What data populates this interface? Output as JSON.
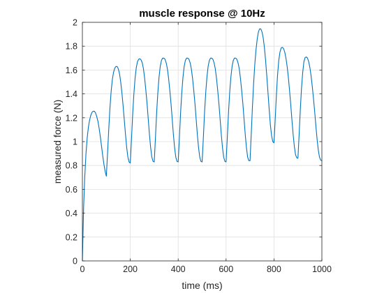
{
  "chart_data": {
    "type": "line",
    "title": "muscle response @ 10Hz",
    "xlabel": "time (ms)",
    "ylabel": "measured force (N)",
    "xlim": [
      0,
      1000
    ],
    "ylim": [
      0,
      2
    ],
    "xticks": [
      0,
      200,
      400,
      600,
      800,
      1000
    ],
    "yticks": [
      0,
      0.2,
      0.4,
      0.6,
      0.8,
      1,
      1.2,
      1.4,
      1.6,
      1.8,
      2
    ],
    "xtick_labels": [
      "0",
      "200",
      "400",
      "600",
      "800",
      "1000"
    ],
    "ytick_labels": [
      "0",
      "0.2",
      "0.4",
      "0.6",
      "0.8",
      "1",
      "1.2",
      "1.4",
      "1.6",
      "1.8",
      "2"
    ],
    "grid": true,
    "series": [
      {
        "color": "#0072BD",
        "x": [
          0,
          5,
          10,
          15,
          20,
          25,
          30,
          35,
          40,
          45,
          50,
          55,
          60,
          65,
          70,
          75,
          80,
          85,
          90,
          95,
          100,
          105,
          110,
          115,
          120,
          125,
          130,
          135,
          140,
          145,
          150,
          155,
          160,
          165,
          170,
          175,
          180,
          185,
          190,
          195,
          200,
          205,
          210,
          215,
          220,
          225,
          230,
          235,
          240,
          245,
          250,
          255,
          260,
          265,
          270,
          275,
          280,
          285,
          290,
          295,
          300,
          305,
          310,
          315,
          320,
          325,
          330,
          335,
          340,
          345,
          350,
          355,
          360,
          365,
          370,
          375,
          380,
          385,
          390,
          395,
          400,
          405,
          410,
          415,
          420,
          425,
          430,
          435,
          440,
          445,
          450,
          455,
          460,
          465,
          470,
          475,
          480,
          485,
          490,
          495,
          500,
          505,
          510,
          515,
          520,
          525,
          530,
          535,
          540,
          545,
          550,
          555,
          560,
          565,
          570,
          575,
          580,
          585,
          590,
          595,
          600,
          605,
          610,
          615,
          620,
          625,
          630,
          635,
          640,
          645,
          650,
          655,
          660,
          665,
          670,
          675,
          680,
          685,
          690,
          695,
          700,
          705,
          710,
          715,
          720,
          725,
          730,
          735,
          740,
          745,
          750,
          755,
          760,
          765,
          770,
          775,
          780,
          785,
          790,
          795,
          800,
          805,
          810,
          815,
          820,
          825,
          830,
          835,
          840,
          845,
          850,
          855,
          860,
          865,
          870,
          875,
          880,
          885,
          890,
          895,
          900,
          905,
          910,
          915,
          920,
          925,
          930,
          935,
          940,
          945,
          950,
          955,
          960,
          965,
          970,
          975,
          980,
          985,
          990,
          995,
          1000
        ],
        "y": [
          0,
          0.44,
          0.71,
          0.9,
          1.03,
          1.12,
          1.18,
          1.22,
          1.245,
          1.255,
          1.255,
          1.24,
          1.21,
          1.17,
          1.11,
          1.04,
          0.96,
          0.88,
          0.81,
          0.75,
          0.71,
          0.9,
          1.1,
          1.28,
          1.42,
          1.52,
          1.58,
          1.615,
          1.63,
          1.63,
          1.61,
          1.57,
          1.5,
          1.41,
          1.3,
          1.18,
          1.06,
          0.95,
          0.87,
          0.83,
          0.82,
          1.02,
          1.23,
          1.4,
          1.53,
          1.62,
          1.67,
          1.69,
          1.695,
          1.685,
          1.66,
          1.61,
          1.53,
          1.43,
          1.32,
          1.19,
          1.06,
          0.95,
          0.87,
          0.835,
          0.83,
          1.03,
          1.24,
          1.41,
          1.54,
          1.63,
          1.68,
          1.7,
          1.7,
          1.69,
          1.66,
          1.61,
          1.53,
          1.43,
          1.32,
          1.19,
          1.06,
          0.95,
          0.87,
          0.835,
          0.83,
          1.03,
          1.24,
          1.41,
          1.54,
          1.63,
          1.68,
          1.7,
          1.7,
          1.69,
          1.66,
          1.61,
          1.53,
          1.43,
          1.32,
          1.19,
          1.06,
          0.95,
          0.87,
          0.835,
          0.83,
          1.03,
          1.24,
          1.41,
          1.54,
          1.63,
          1.68,
          1.7,
          1.7,
          1.69,
          1.66,
          1.61,
          1.53,
          1.43,
          1.32,
          1.19,
          1.06,
          0.95,
          0.87,
          0.835,
          0.83,
          1.03,
          1.24,
          1.41,
          1.54,
          1.63,
          1.68,
          1.7,
          1.7,
          1.69,
          1.66,
          1.61,
          1.53,
          1.43,
          1.32,
          1.19,
          1.06,
          0.95,
          0.87,
          0.84,
          0.84,
          1.06,
          1.29,
          1.49,
          1.65,
          1.77,
          1.86,
          1.92,
          1.945,
          1.945,
          1.92,
          1.87,
          1.79,
          1.68,
          1.55,
          1.41,
          1.27,
          1.14,
          1.05,
          1.0,
          0.99,
          1.18,
          1.39,
          1.56,
          1.68,
          1.75,
          1.785,
          1.79,
          1.78,
          1.75,
          1.7,
          1.63,
          1.54,
          1.43,
          1.31,
          1.18,
          1.06,
          0.96,
          0.89,
          0.865,
          0.86,
          1.06,
          1.27,
          1.45,
          1.58,
          1.67,
          1.705,
          1.71,
          1.7,
          1.67,
          1.62,
          1.55,
          1.46,
          1.36,
          1.25,
          1.13,
          1.02,
          0.93,
          0.87,
          0.845,
          0.84
        ]
      }
    ]
  }
}
